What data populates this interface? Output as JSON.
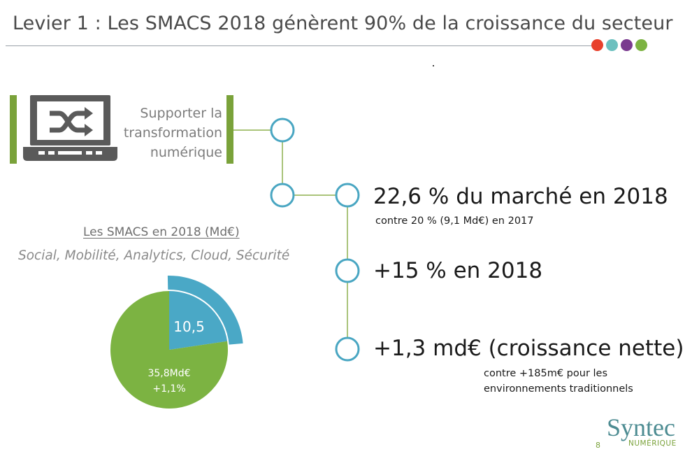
{
  "header": {
    "title": "Levier 1 : Les SMACS 2018 génèrent 90% de la croissance du secteur",
    "dot_colors": [
      "#e8412c",
      "#6cc0bf",
      "#7a3a8f",
      "#7cb342"
    ]
  },
  "icon_block": {
    "icon": "shuffle-laptop-icon",
    "text_lines": [
      "Supporter la",
      "transformation",
      "numérique"
    ]
  },
  "stats": [
    {
      "big": "22,6 % du marché en 2018",
      "small": [
        "contre 20 % (9,1 Md€) en 2017"
      ]
    },
    {
      "big": "+15 % en 2018",
      "small": []
    },
    {
      "big": "+1,3 md€ (croissance nette)",
      "small": [
        "contre +185m€ pour les",
        "environnements traditionnels"
      ]
    }
  ],
  "colors": {
    "green": "#7cb342",
    "blue": "#4aa8c6",
    "bar_green": "#7aa23a"
  },
  "chart_data": {
    "type": "pie",
    "title": "Les SMACS en 2018 (Md€)",
    "subtitle": "Social, Mobilité, Analytics, Cloud, Sécurité",
    "slices": [
      {
        "label": "10,5",
        "value": 10.5,
        "color": "#4aa8c6"
      },
      {
        "label": "35,8Md€",
        "sublabel": "+1,1%",
        "value": 35.8,
        "color": "#7cb342"
      }
    ]
  },
  "footer": {
    "brand": "Syntec",
    "brand_sub": "NUMÉRIQUE",
    "page": "8"
  }
}
